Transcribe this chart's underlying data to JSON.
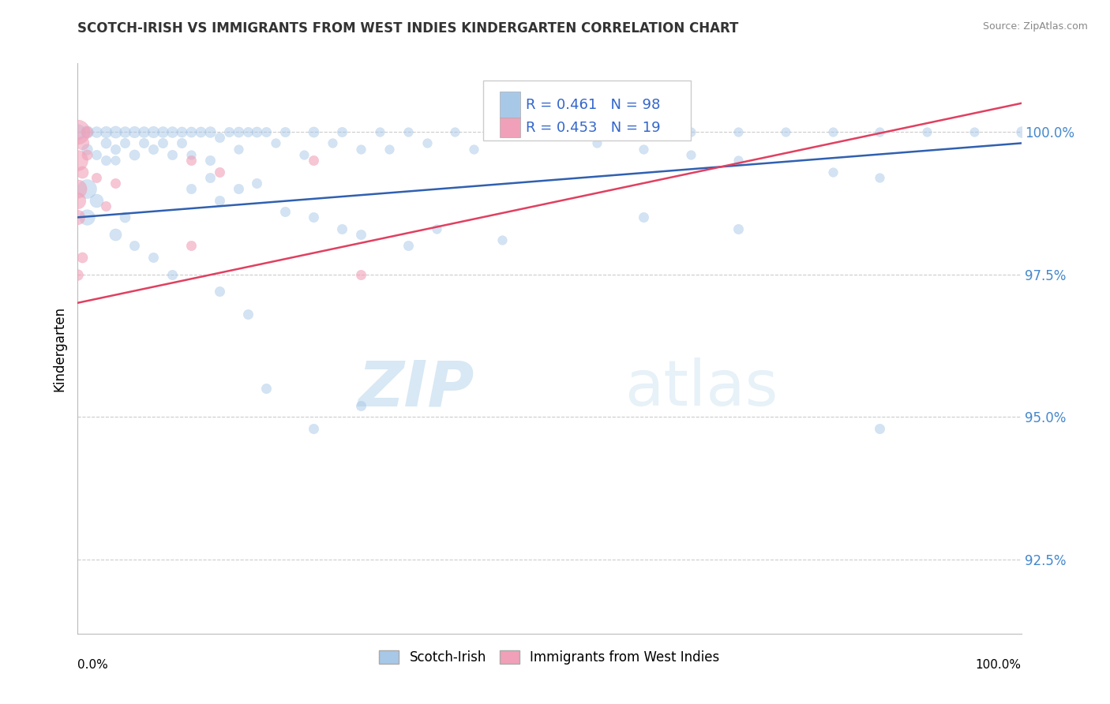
{
  "title": "SCOTCH-IRISH VS IMMIGRANTS FROM WEST INDIES KINDERGARTEN CORRELATION CHART",
  "source": "Source: ZipAtlas.com",
  "ylabel": "Kindergarten",
  "yticks": [
    92.5,
    95.0,
    97.5,
    100.0
  ],
  "ytick_labels": [
    "92.5%",
    "95.0%",
    "97.5%",
    "100.0%"
  ],
  "xmin": 0.0,
  "xmax": 1.0,
  "ymin": 91.2,
  "ymax": 101.2,
  "blue_R": "0.461",
  "blue_N": "98",
  "pink_R": "0.453",
  "pink_N": "19",
  "legend_label_blue": "Scotch-Irish",
  "legend_label_pink": "Immigrants from West Indies",
  "blue_color": "#a8c8e8",
  "pink_color": "#f0a0b8",
  "blue_line_color": "#3060b0",
  "pink_line_color": "#e04060",
  "watermark_zip": "ZIP",
  "watermark_atlas": "atlas",
  "blue_points": [
    [
      0.0,
      100.0,
      200
    ],
    [
      0.01,
      100.0,
      130
    ],
    [
      0.01,
      99.7,
      100
    ],
    [
      0.02,
      100.0,
      100
    ],
    [
      0.02,
      99.6,
      80
    ],
    [
      0.03,
      100.0,
      110
    ],
    [
      0.03,
      99.8,
      90
    ],
    [
      0.03,
      99.5,
      80
    ],
    [
      0.04,
      100.0,
      120
    ],
    [
      0.04,
      99.7,
      80
    ],
    [
      0.04,
      99.5,
      70
    ],
    [
      0.05,
      100.0,
      100
    ],
    [
      0.05,
      99.8,
      80
    ],
    [
      0.06,
      100.0,
      110
    ],
    [
      0.06,
      99.6,
      90
    ],
    [
      0.07,
      100.0,
      100
    ],
    [
      0.07,
      99.8,
      80
    ],
    [
      0.08,
      100.0,
      110
    ],
    [
      0.08,
      99.7,
      80
    ],
    [
      0.09,
      100.0,
      100
    ],
    [
      0.09,
      99.8,
      80
    ],
    [
      0.1,
      100.0,
      100
    ],
    [
      0.1,
      99.6,
      80
    ],
    [
      0.11,
      100.0,
      90
    ],
    [
      0.11,
      99.8,
      80
    ],
    [
      0.12,
      100.0,
      90
    ],
    [
      0.12,
      99.6,
      70
    ],
    [
      0.13,
      100.0,
      90
    ],
    [
      0.14,
      100.0,
      100
    ],
    [
      0.14,
      99.5,
      80
    ],
    [
      0.15,
      99.9,
      80
    ],
    [
      0.16,
      100.0,
      80
    ],
    [
      0.17,
      100.0,
      90
    ],
    [
      0.17,
      99.7,
      70
    ],
    [
      0.18,
      100.0,
      80
    ],
    [
      0.19,
      100.0,
      90
    ],
    [
      0.2,
      100.0,
      80
    ],
    [
      0.21,
      99.8,
      70
    ],
    [
      0.22,
      100.0,
      80
    ],
    [
      0.24,
      99.6,
      70
    ],
    [
      0.25,
      100.0,
      90
    ],
    [
      0.27,
      99.8,
      70
    ],
    [
      0.28,
      100.0,
      80
    ],
    [
      0.3,
      99.7,
      70
    ],
    [
      0.32,
      100.0,
      70
    ],
    [
      0.33,
      99.7,
      70
    ],
    [
      0.35,
      100.0,
      70
    ],
    [
      0.37,
      99.8,
      70
    ],
    [
      0.4,
      100.0,
      70
    ],
    [
      0.42,
      99.7,
      70
    ],
    [
      0.01,
      99.0,
      300
    ],
    [
      0.01,
      98.5,
      200
    ],
    [
      0.02,
      98.8,
      150
    ],
    [
      0.04,
      98.2,
      120
    ],
    [
      0.05,
      98.5,
      90
    ],
    [
      0.06,
      98.0,
      80
    ],
    [
      0.08,
      97.8,
      80
    ],
    [
      0.1,
      97.5,
      80
    ],
    [
      0.12,
      99.0,
      80
    ],
    [
      0.14,
      99.2,
      80
    ],
    [
      0.15,
      98.8,
      80
    ],
    [
      0.17,
      99.0,
      80
    ],
    [
      0.19,
      99.1,
      80
    ],
    [
      0.22,
      98.6,
      80
    ],
    [
      0.25,
      98.5,
      80
    ],
    [
      0.28,
      98.3,
      80
    ],
    [
      0.3,
      98.2,
      80
    ],
    [
      0.35,
      98.0,
      80
    ],
    [
      0.38,
      98.3,
      70
    ],
    [
      0.45,
      98.1,
      70
    ],
    [
      0.15,
      97.2,
      80
    ],
    [
      0.18,
      96.8,
      80
    ],
    [
      0.2,
      95.5,
      80
    ],
    [
      0.25,
      94.8,
      80
    ],
    [
      0.3,
      95.2,
      80
    ],
    [
      0.5,
      100.0,
      70
    ],
    [
      0.55,
      100.0,
      70
    ],
    [
      0.6,
      100.0,
      70
    ],
    [
      0.65,
      100.0,
      70
    ],
    [
      0.7,
      100.0,
      70
    ],
    [
      0.75,
      100.0,
      70
    ],
    [
      0.8,
      100.0,
      70
    ],
    [
      0.85,
      100.0,
      70
    ],
    [
      0.9,
      100.0,
      70
    ],
    [
      0.95,
      100.0,
      70
    ],
    [
      1.0,
      100.0,
      100
    ],
    [
      0.55,
      99.8,
      70
    ],
    [
      0.6,
      99.7,
      70
    ],
    [
      0.65,
      99.6,
      70
    ],
    [
      0.7,
      99.5,
      70
    ],
    [
      0.8,
      99.3,
      70
    ],
    [
      0.85,
      99.2,
      70
    ],
    [
      0.6,
      98.5,
      80
    ],
    [
      0.7,
      98.3,
      80
    ],
    [
      0.85,
      94.8,
      80
    ]
  ],
  "pink_points": [
    [
      0.0,
      100.0,
      500
    ],
    [
      0.0,
      99.5,
      350
    ],
    [
      0.0,
      99.0,
      280
    ],
    [
      0.0,
      98.8,
      220
    ],
    [
      0.0,
      98.5,
      180
    ],
    [
      0.005,
      99.8,
      150
    ],
    [
      0.005,
      99.3,
      120
    ],
    [
      0.01,
      100.0,
      100
    ],
    [
      0.01,
      99.6,
      90
    ],
    [
      0.005,
      97.8,
      90
    ],
    [
      0.02,
      99.2,
      80
    ],
    [
      0.03,
      98.7,
      80
    ],
    [
      0.04,
      99.1,
      80
    ],
    [
      0.0,
      97.5,
      100
    ],
    [
      0.12,
      99.5,
      80
    ],
    [
      0.15,
      99.3,
      80
    ],
    [
      0.12,
      98.0,
      80
    ],
    [
      0.25,
      99.5,
      80
    ],
    [
      0.3,
      97.5,
      80
    ]
  ],
  "blue_trend": [
    0.0,
    1.0,
    98.5,
    99.8
  ],
  "pink_trend": [
    0.0,
    1.0,
    97.0,
    100.5
  ]
}
